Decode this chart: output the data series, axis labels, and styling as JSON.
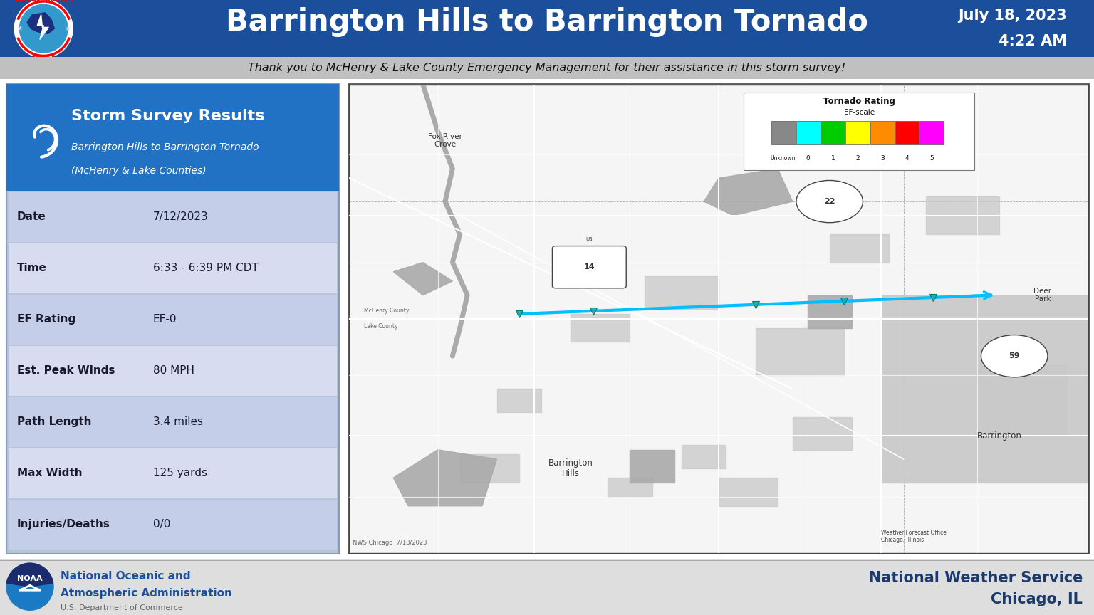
{
  "title": "Barrington Hills to Barrington Tornado",
  "date_str": "July 18, 2023",
  "time_str": "4:22 AM",
  "subtitle": "Thank you to McHenry & Lake County Emergency Management for their assistance in this storm survey!",
  "header_bg": "#1B4F9C",
  "header_text_color": "#FFFFFF",
  "subtitle_bg": "#C8C8C8",
  "subtitle_text_color": "#222222",
  "footer_bg": "#DEDEDE",
  "body_bg": "#FFFFFF",
  "card_title": "Storm Survey Results",
  "card_subtitle1": "Barrington Hills to Barrington Tornado",
  "card_subtitle2": "(McHenry & Lake Counties)",
  "card_header_bg": "#2172C4",
  "card_row_bg1": "#C5CEE8",
  "card_row_bg2": "#D8DCF0",
  "table_rows": [
    [
      "Date",
      "7/12/2023"
    ],
    [
      "Time",
      "6:33 - 6:39 PM CDT"
    ],
    [
      "EF Rating",
      "EF-0"
    ],
    [
      "Est. Peak Winds",
      "80 MPH"
    ],
    [
      "Path Length",
      "3.4 miles"
    ],
    [
      "Max Width",
      "125 yards"
    ],
    [
      "Injuries/Deaths",
      "0/0"
    ]
  ],
  "map_bg": "#E8E8E8",
  "tornado_path_color": "#00BFFF",
  "tornado_marker_color": "#20B2AA",
  "ef_scale_colors": [
    "#888888",
    "#00FFFF",
    "#00CC00",
    "#FFFF00",
    "#FF8C00",
    "#FF0000",
    "#FF00FF"
  ],
  "ef_scale_labels": [
    "Unknown",
    "0",
    "1",
    "2",
    "3",
    "4",
    "5"
  ],
  "noaa_blue": "#1B4F9C",
  "nws_text_color": "#1B3A6B"
}
